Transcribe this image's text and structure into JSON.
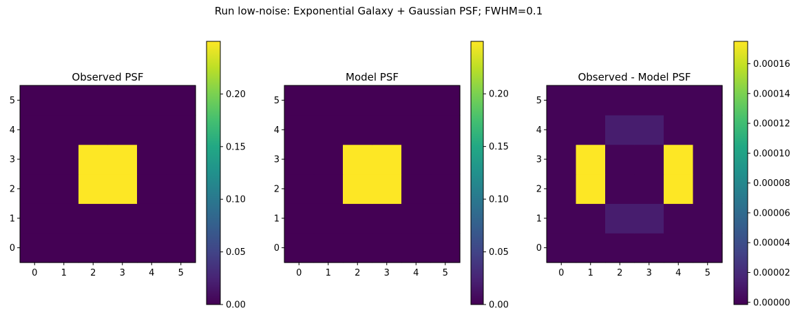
{
  "figure": {
    "title": "Run low-noise: Exponential Galaxy + Gaussian PSF; FWHM=0.1"
  },
  "chart_data": [
    {
      "type": "heatmap",
      "title": "Observed PSF",
      "colormap": "viridis",
      "x_ticks": [
        "0",
        "1",
        "2",
        "3",
        "4",
        "5"
      ],
      "y_ticks": [
        "0",
        "1",
        "2",
        "3",
        "4",
        "5"
      ],
      "xlim": [
        -0.5,
        5.5
      ],
      "ylim": [
        -0.5,
        5.5
      ],
      "grid": [
        [
          0,
          0,
          0,
          0,
          0,
          0
        ],
        [
          0,
          0,
          0,
          0,
          0,
          0
        ],
        [
          0,
          0,
          0.25,
          0.25,
          0,
          0
        ],
        [
          0,
          0,
          0.25,
          0.25,
          0,
          0
        ],
        [
          0,
          0,
          0,
          0,
          0,
          0
        ],
        [
          0,
          0,
          0,
          0,
          0,
          0
        ]
      ],
      "colorbar": {
        "vmin": 0.0,
        "vmax": 0.25,
        "ticks": [
          0.0,
          0.05,
          0.1,
          0.15,
          0.2
        ],
        "tick_labels": [
          "0.00",
          "0.05",
          "0.10",
          "0.15",
          "0.20"
        ]
      }
    },
    {
      "type": "heatmap",
      "title": "Model PSF",
      "colormap": "viridis",
      "x_ticks": [
        "0",
        "1",
        "2",
        "3",
        "4",
        "5"
      ],
      "y_ticks": [
        "0",
        "1",
        "2",
        "3",
        "4",
        "5"
      ],
      "xlim": [
        -0.5,
        5.5
      ],
      "ylim": [
        -0.5,
        5.5
      ],
      "grid": [
        [
          0,
          0,
          0,
          0,
          0,
          0
        ],
        [
          0,
          0,
          0,
          0,
          0,
          0
        ],
        [
          0,
          0,
          0.2498,
          0.2498,
          0,
          0
        ],
        [
          0,
          0,
          0.2498,
          0.2498,
          0,
          0
        ],
        [
          0,
          0,
          0,
          0,
          0,
          0
        ],
        [
          0,
          0,
          0,
          0,
          0,
          0
        ]
      ],
      "colorbar": {
        "vmin": 0.0,
        "vmax": 0.2498,
        "ticks": [
          0.0,
          0.05,
          0.1,
          0.15,
          0.2
        ],
        "tick_labels": [
          "0.00",
          "0.05",
          "0.10",
          "0.15",
          "0.20"
        ]
      }
    },
    {
      "type": "heatmap",
      "title": "Observed - Model PSF",
      "colormap": "viridis",
      "x_ticks": [
        "0",
        "1",
        "2",
        "3",
        "4",
        "5"
      ],
      "y_ticks": [
        "0",
        "1",
        "2",
        "3",
        "4",
        "5"
      ],
      "xlim": [
        -0.5,
        5.5
      ],
      "ylim": [
        -0.5,
        5.5
      ],
      "grid": [
        [
          0,
          0,
          0,
          0,
          0,
          0
        ],
        [
          0,
          0,
          1.25e-05,
          1.25e-05,
          0,
          0
        ],
        [
          0,
          0.000175,
          0,
          0,
          0.000175,
          0
        ],
        [
          0,
          0.000175,
          0,
          0,
          0.000175,
          0
        ],
        [
          0,
          0,
          1.25e-05,
          1.25e-05,
          0,
          0
        ],
        [
          0,
          0,
          0,
          0,
          0,
          0
        ]
      ],
      "colorbar": {
        "vmin": -1.5e-06,
        "vmax": 0.000175,
        "ticks": [
          0.0,
          2e-05,
          4e-05,
          6e-05,
          8e-05,
          0.0001,
          0.00012,
          0.00014,
          0.00016
        ],
        "tick_labels": [
          "0.00000",
          "0.00002",
          "0.00004",
          "0.00006",
          "0.00008",
          "0.00010",
          "0.00012",
          "0.00014",
          "0.00016"
        ]
      }
    }
  ]
}
